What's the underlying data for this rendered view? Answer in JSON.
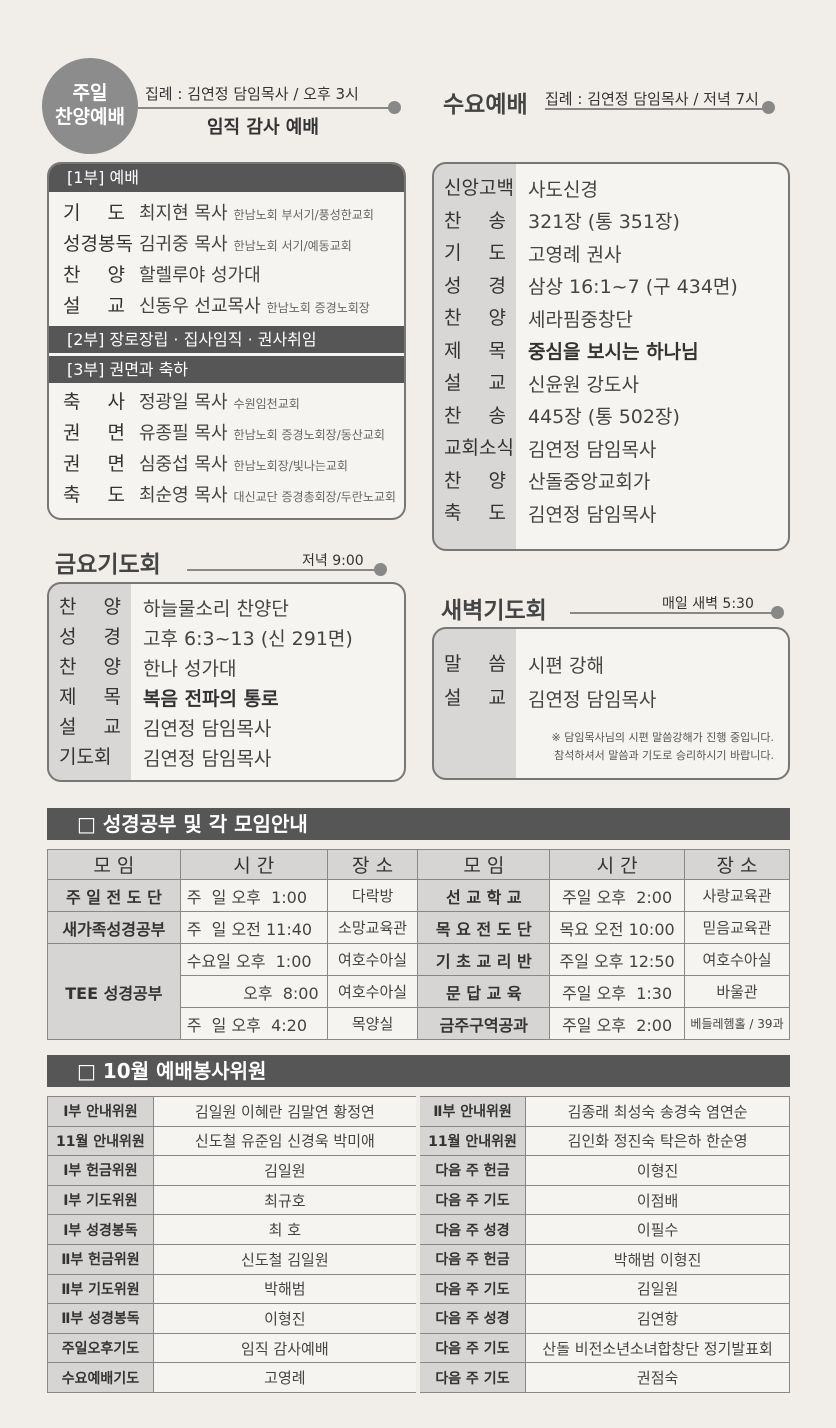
{
  "sunday": {
    "badge_line1": "주일",
    "badge_line2": "찬양예배",
    "officiant": "집례 : 김연정 담임목사 / 오후 3시",
    "theme": "임직 감사 예배",
    "part1": "[1부]  예배",
    "part1_items": [
      {
        "label": "기 도",
        "name": "최지현 목사",
        "note": "한남노회 부서기/풍성한교회"
      },
      {
        "label": "성경봉독",
        "name": "김귀중 목사",
        "note": "한남노회 서기/예동교회"
      },
      {
        "label": "찬 양",
        "name": "할렐루야 성가대",
        "note": ""
      },
      {
        "label": "설 교",
        "name": "신동우 선교목사",
        "note": "한남노회 증경노회장"
      }
    ],
    "part2": "[2부]  장로장립 · 집사임직 · 권사취임",
    "part3": "[3부]  권면과 축하",
    "part3_items": [
      {
        "label": "축 사",
        "name": "정광일 목사",
        "note": "수원임천교회"
      },
      {
        "label": "권 면",
        "name": "유종필 목사",
        "note": "한남노회 증경노회장/동산교회"
      },
      {
        "label": "권 면",
        "name": "심중섭 목사",
        "note": "한남노회장/빛나는교회"
      },
      {
        "label": "축 도",
        "name": "최순영 목사",
        "note": "대신교단 증경총회장/두란노교회"
      }
    ]
  },
  "wednesday": {
    "title": "수요예배",
    "officiant": "집례 : 김연정 담임목사 / 저녁 7시",
    "items": [
      {
        "label": "신앙고백",
        "value": "사도신경",
        "bold": false
      },
      {
        "label": "찬 송",
        "value": "321장 (통 351장)",
        "bold": false
      },
      {
        "label": "기 도",
        "value": "고영례 권사",
        "bold": false
      },
      {
        "label": "성 경",
        "value": "삼상 16:1~7 (구 434면)",
        "bold": false
      },
      {
        "label": "찬 양",
        "value": "세라핌중창단",
        "bold": false
      },
      {
        "label": "제 목",
        "value": "중심을 보시는 하나님",
        "bold": true
      },
      {
        "label": "설 교",
        "value": "신윤원 강도사",
        "bold": false
      },
      {
        "label": "찬 송",
        "value": "445장 (통 502장)",
        "bold": false
      },
      {
        "label": "교회소식",
        "value": "김연정 담임목사",
        "bold": false
      },
      {
        "label": "찬 양",
        "value": "산돌중앙교회가",
        "bold": false
      },
      {
        "label": "축 도",
        "value": "김연정 담임목사",
        "bold": false
      }
    ]
  },
  "friday": {
    "title": "금요기도회",
    "time": "저녁 9:00",
    "items": [
      {
        "label": "찬 양",
        "value": "하늘물소리 찬양단",
        "bold": false
      },
      {
        "label": "성 경",
        "value": "고후 6:3~13 (신 291면)",
        "bold": false
      },
      {
        "label": "찬 양",
        "value": "한나 성가대",
        "bold": false
      },
      {
        "label": "제 목",
        "value": "복음 전파의 통로",
        "bold": true
      },
      {
        "label": "설 교",
        "value": "김연정 담임목사",
        "bold": false
      },
      {
        "label": "기도회",
        "value": "김연정 담임목사",
        "bold": false
      }
    ]
  },
  "dawn": {
    "title": "새벽기도회",
    "time": "매일 새벽 5:30",
    "items": [
      {
        "label": "말 씀",
        "value": "시편 강해"
      },
      {
        "label": "설 교",
        "value": "김연정 담임목사"
      }
    ],
    "note_line1": "※ 담임목사님의 시편 말씀강해가 진행 중입니다.",
    "note_line2": "참석하셔서 말씀과 기도로 승리하시기 바랍니다."
  },
  "study": {
    "heading": "□  성경공부 및 각 모임안내",
    "headers": [
      "모 임",
      "시 간",
      "장 소",
      "모 임",
      "시 간",
      "장 소"
    ],
    "left": [
      {
        "group": "주 일 전 도 단",
        "time": "주  일 오후  1:00",
        "place": "다락방"
      },
      {
        "group": "새가족성경공부",
        "time": "주  일 오전 11:40",
        "place": "소망교육관"
      },
      {
        "group": "TEE 성경공부",
        "time": "수요일 오후  1:00",
        "place": "여호수아실"
      },
      {
        "group": "",
        "time": "오후  8:00",
        "place": "여호수아실"
      },
      {
        "group": "",
        "time": "주  일 오후  4:20",
        "place": "목양실"
      }
    ],
    "right": [
      {
        "group": "선 교 학 교",
        "time": "주일 오후  2:00",
        "place": "사랑교육관"
      },
      {
        "group": "목 요 전 도 단",
        "time": "목요 오전 10:00",
        "place": "믿음교육관"
      },
      {
        "group": "기 초 교 리 반",
        "time": "주일 오후 12:50",
        "place": "여호수아실"
      },
      {
        "group": "문 답 교 육",
        "time": "주일 오후  1:30",
        "place": "바울관"
      },
      {
        "group": "금주구역공과",
        "time": "주일 오후  2:00",
        "place": "베들레헴홀 / 39과"
      }
    ]
  },
  "servers": {
    "heading": "□  10월 예배봉사위원",
    "rows": [
      [
        "Ⅰ부 안내위원",
        "김일원 이혜란 김말연 황정연",
        "Ⅱ부 안내위원",
        "김종래 최성숙 송경숙 염연순"
      ],
      [
        "11월 안내위원",
        "신도철 유준임 신경욱 박미애",
        "11월 안내위원",
        "김인화 정진숙 탁은하 한순영"
      ],
      [
        "Ⅰ부 헌금위원",
        "김일원",
        "다음 주 헌금",
        "이형진"
      ],
      [
        "Ⅰ부 기도위원",
        "최규호",
        "다음 주 기도",
        "이점배"
      ],
      [
        "Ⅰ부 성경봉독",
        "최 호",
        "다음 주 성경",
        "이필수"
      ],
      [
        "Ⅱ부 헌금위원",
        "신도철 김일원",
        "다음 주 헌금",
        "박해범 이형진"
      ],
      [
        "Ⅱ부 기도위원",
        "박해범",
        "다음 주 기도",
        "김일원"
      ],
      [
        "Ⅱ부 성경봉독",
        "이형진",
        "다음 주 성경",
        "김연항"
      ],
      [
        "주일오후기도",
        "임직 감사예배",
        "다음 주 기도",
        "산돌 비전소년소녀합창단 정기발표회"
      ],
      [
        "수요예배기도",
        "고영례",
        "다음 주 기도",
        "권점숙"
      ]
    ]
  }
}
